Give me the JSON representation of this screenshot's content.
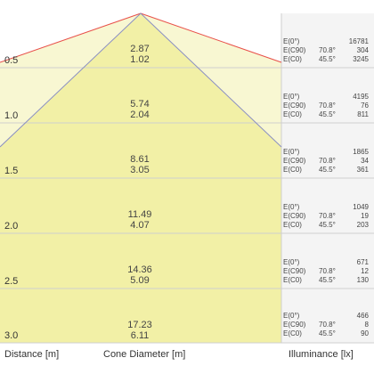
{
  "rows": [
    {
      "distance": "0.5",
      "cone_diameter": "2.87",
      "cone_half": "1.02",
      "illuminance": [
        {
          "label": "E(0°)",
          "angle": "",
          "value": "16781"
        },
        {
          "label": "E(C90)",
          "angle": "70.8°",
          "value": "304"
        },
        {
          "label": "E(C0)",
          "angle": "45.5°",
          "value": "3245"
        }
      ]
    },
    {
      "distance": "1.0",
      "cone_diameter": "5.74",
      "cone_half": "2.04",
      "illuminance": [
        {
          "label": "E(0°)",
          "angle": "",
          "value": "4195"
        },
        {
          "label": "E(C90)",
          "angle": "70.8°",
          "value": "76"
        },
        {
          "label": "E(C0)",
          "angle": "45.5°",
          "value": "811"
        }
      ]
    },
    {
      "distance": "1.5",
      "cone_diameter": "8.61",
      "cone_half": "3.05",
      "illuminance": [
        {
          "label": "E(0°)",
          "angle": "",
          "value": "1865"
        },
        {
          "label": "E(C90)",
          "angle": "70.8°",
          "value": "34"
        },
        {
          "label": "E(C0)",
          "angle": "45.5°",
          "value": "361"
        }
      ]
    },
    {
      "distance": "2.0",
      "cone_diameter": "11.49",
      "cone_half": "4.07",
      "illuminance": [
        {
          "label": "E(0°)",
          "angle": "",
          "value": "1049"
        },
        {
          "label": "E(C90)",
          "angle": "70.8°",
          "value": "19"
        },
        {
          "label": "E(C0)",
          "angle": "45.5°",
          "value": "203"
        }
      ]
    },
    {
      "distance": "2.5",
      "cone_diameter": "14.36",
      "cone_half": "5.09",
      "illuminance": [
        {
          "label": "E(0°)",
          "angle": "",
          "value": "671"
        },
        {
          "label": "E(C90)",
          "angle": "70.8°",
          "value": "12"
        },
        {
          "label": "E(C0)",
          "angle": "45.5°",
          "value": "130"
        }
      ]
    },
    {
      "distance": "3.0",
      "cone_diameter": "17.23",
      "cone_half": "6.11",
      "illuminance": [
        {
          "label": "E(0°)",
          "angle": "",
          "value": "466"
        },
        {
          "label": "E(C90)",
          "angle": "70.8°",
          "value": "8"
        },
        {
          "label": "E(C0)",
          "angle": "45.5°",
          "value": "90"
        }
      ]
    }
  ],
  "footer": {
    "distance_label": "Distance [m]",
    "cone_label": "Cone Diameter [m]",
    "illuminance_label": "Illuminance [lx]"
  },
  "colors": {
    "inner_cone": "#f2f0a6",
    "outer_cone": "#f8f7d2",
    "red_line": "#e8504a",
    "blue_line": "#8a8fc4",
    "grid": "#cfcfcf",
    "panel": "#f4f4f4"
  }
}
